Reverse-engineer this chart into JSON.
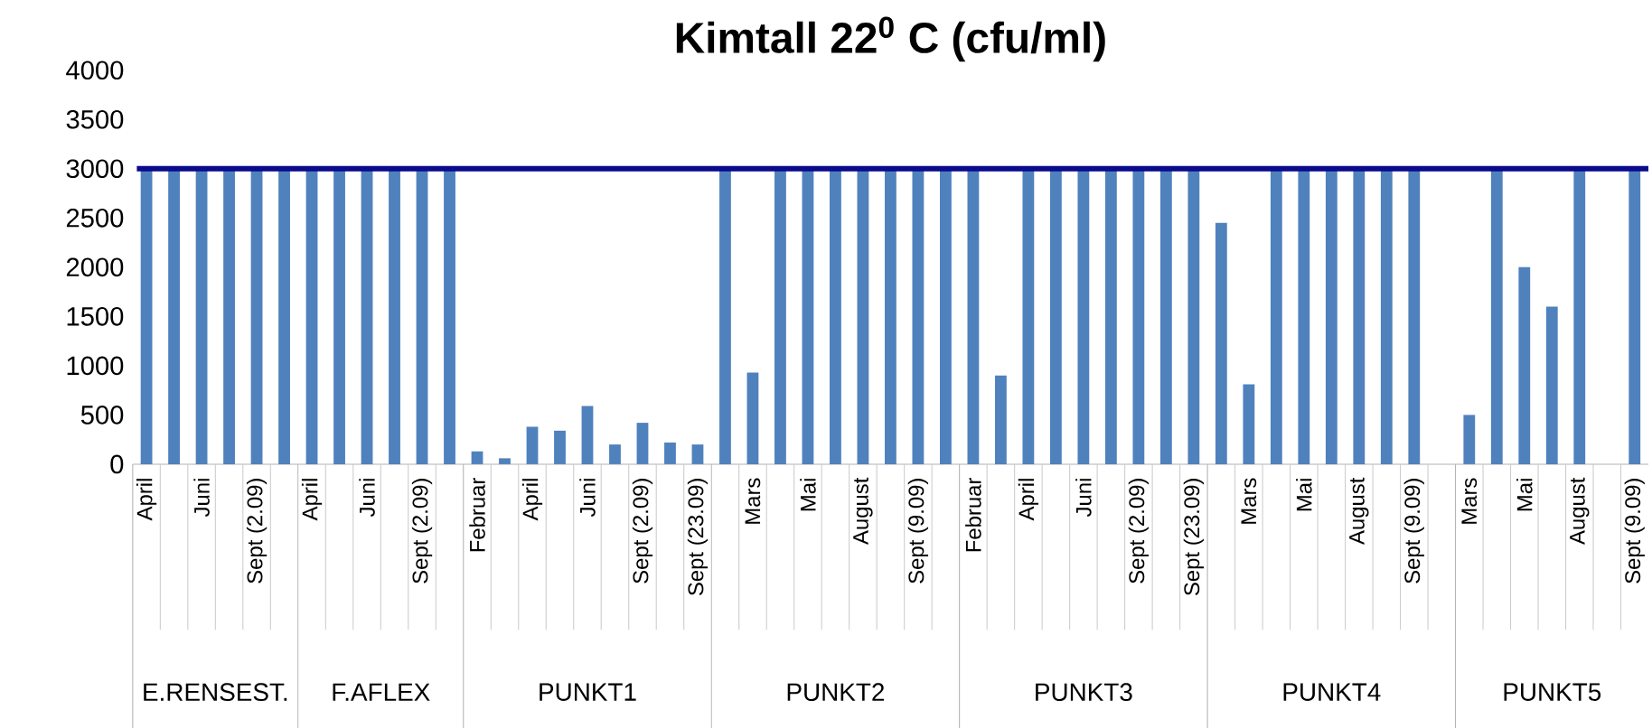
{
  "chart_data": {
    "type": "bar",
    "title": "**Kimtall 22$^{0}$ C (cfu/ml)**",
    "categories": [
      "April",
      null,
      "Juni",
      null,
      "Sept (2.09)",
      null,
      "April",
      null,
      "Juni",
      null,
      "Sept (2.09)",
      null,
      "Februar",
      null,
      "April",
      null,
      "Juni",
      null,
      "Sept (2.09)",
      null,
      "Sept (23.09)",
      null,
      "Mars",
      null,
      "Mai",
      null,
      "August",
      null,
      "Sept (9.09)",
      null,
      "Februar",
      null,
      "April",
      null,
      "Juni",
      null,
      "Sept (2.09)",
      null,
      "Sept (23.09)",
      null,
      "Mars",
      null,
      "Mai",
      null,
      "August",
      null,
      "Sept (9.09)",
      null,
      "Mars",
      null,
      "Mai",
      null,
      "August",
      null,
      "Sept (9.09)"
    ],
    "values": [
      3000,
      3000,
      3000,
      3000,
      3000,
      3000,
      3000,
      3000,
      3000,
      3000,
      3000,
      3000,
      130,
      60,
      380,
      340,
      590,
      200,
      420,
      220,
      200,
      3000,
      930,
      3000,
      3000,
      3000,
      3000,
      3000,
      3000,
      3000,
      3000,
      900,
      3000,
      3000,
      3000,
      3000,
      3000,
      3000,
      3000,
      2450,
      810,
      3000,
      3000,
      3000,
      3000,
      3000,
      3000,
      null,
      500,
      3000,
      2000,
      1600,
      3000,
      null,
      3000
    ],
    "color": "#4f81bd",
    "ylim": [
      0,
      4000
    ],
    "yticks": [
      0,
      500,
      1000,
      1500,
      2000,
      2500,
      3000,
      3500,
      4000
    ],
    "ref_lines": [
      {
        "axis": "y",
        "value": 3000,
        "color": "#0a0a8c"
      }
    ],
    "annotations": [
      "E.RENSEST.",
      "F.AFLEX",
      "PUNKT1",
      "PUNKT2",
      "PUNKT3",
      "PUNKT4",
      "PUNKT5"
    ]
  }
}
